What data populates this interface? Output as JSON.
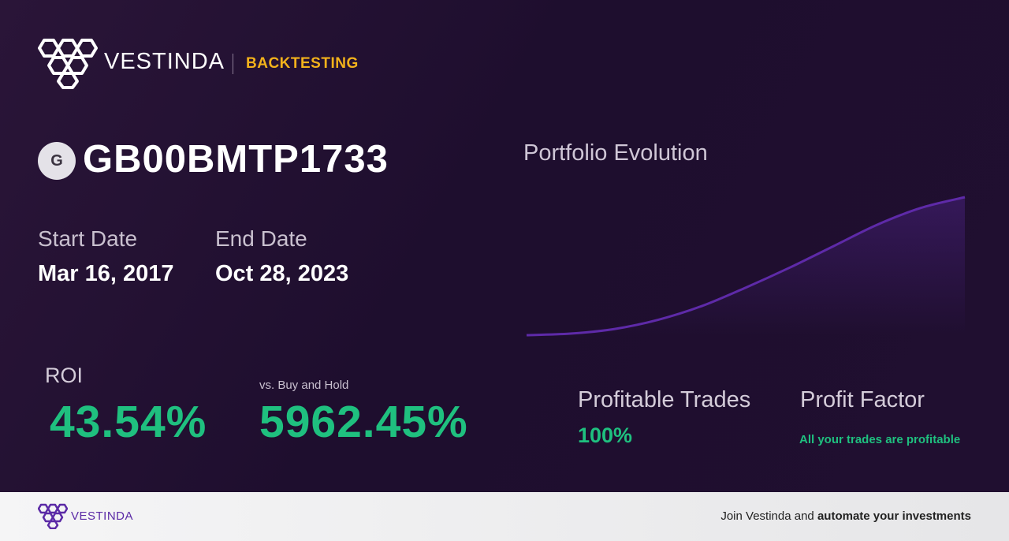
{
  "header": {
    "brand": "VESTINDA",
    "section": "BACKTESTING",
    "logo_icon": "vestinda-hexagon-logo-icon"
  },
  "asset": {
    "badge_letter": "G",
    "ticker": "GB00BMTP1733"
  },
  "dates": {
    "start_label": "Start Date",
    "start_value": "Mar 16, 2017",
    "end_label": "End Date",
    "end_value": "Oct 28, 2023"
  },
  "roi": {
    "label": "ROI",
    "value": "43.54%",
    "vs_label": "vs. Buy and Hold",
    "vs_value": "5962.45%"
  },
  "chart_data": {
    "type": "area",
    "title": "Portfolio Evolution",
    "x": [
      0,
      1,
      2,
      3,
      4,
      5,
      6,
      7,
      8,
      9,
      10
    ],
    "values": [
      0,
      1,
      4,
      10,
      19,
      31,
      44,
      58,
      72,
      83,
      90
    ],
    "color": "#5e2aa8"
  },
  "stats": {
    "profitable_trades_label": "Profitable Trades",
    "profitable_trades_value": "100%",
    "profit_factor_label": "Profit Factor",
    "profit_factor_value": "All your trades are profitable"
  },
  "footer": {
    "brand": "VESTINDA",
    "cta_prefix": "Join Vestinda and ",
    "cta_bold": "automate your investments"
  },
  "colors": {
    "accent_green": "#1fc07f",
    "accent_yellow": "#f3b21b",
    "accent_purple": "#5e2aa8"
  }
}
